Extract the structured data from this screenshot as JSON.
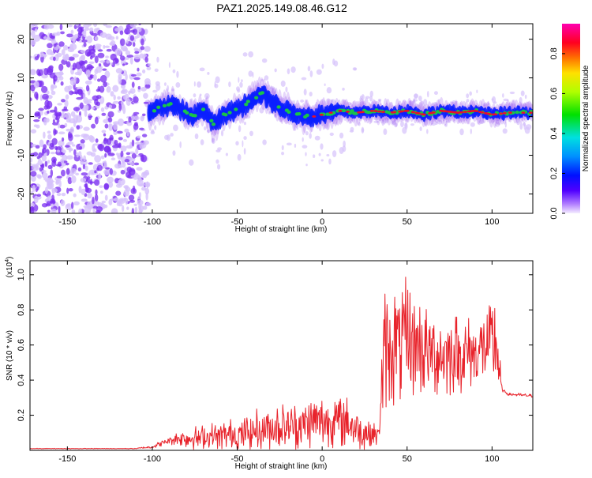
{
  "title": "PAZ1.2025.149.08.46.G12",
  "colors": {
    "spectro_bg": "#ffffff",
    "ridge_core": "#e8102a",
    "ridge_mid": "#19c34a",
    "ridge_outer": "#0a1eff",
    "halo": "#9b5cf0",
    "noise_dark": "#7a2df0",
    "noise_light": "#d6c2fb",
    "snr_line": "#e8232b"
  },
  "chart_data": [
    {
      "type": "heatmap",
      "xlabel": "Height of straight line (km)",
      "ylabel": "Frequency (Hz)",
      "xlim": [
        -172,
        124
      ],
      "ylim": [
        -25,
        24
      ],
      "xticks": [
        -150,
        -100,
        -50,
        0,
        50,
        100
      ],
      "yticks": [
        -20,
        -10,
        0,
        10,
        20
      ],
      "colorbar": {
        "label": "Normalized spectral amplitude",
        "range": [
          0,
          0.95
        ],
        "ticks": [
          "0.0",
          "0.2",
          "0.4",
          "0.6",
          "0.8"
        ],
        "tick_values": [
          0,
          0.2,
          0.4,
          0.6,
          0.8
        ]
      },
      "noise_region": {
        "x": [
          -172,
          -102
        ],
        "freq_range": [
          -25,
          24
        ]
      },
      "ridge": {
        "x": [
          -102,
          -95,
          -88,
          -82,
          -76,
          -70,
          -64,
          -58,
          -52,
          -46,
          -40,
          -35,
          -30,
          -25,
          -20,
          -15,
          -10,
          -5,
          0,
          10,
          20,
          30,
          40,
          50,
          60,
          70,
          80,
          90,
          100,
          110,
          124
        ],
        "freq": [
          1,
          2.5,
          3,
          1.5,
          0,
          2,
          -2,
          0.5,
          1.5,
          3,
          5,
          6,
          4,
          2.5,
          1.5,
          0.5,
          0,
          0,
          0.5,
          1.5,
          1,
          1.5,
          1,
          1.5,
          0.5,
          1.5,
          1,
          1.5,
          0.5,
          1,
          1
        ],
        "amp": [
          0.3,
          0.35,
          0.35,
          0.35,
          0.35,
          0.35,
          0.35,
          0.4,
          0.4,
          0.45,
          0.5,
          0.55,
          0.5,
          0.5,
          0.5,
          0.55,
          0.55,
          0.6,
          0.65,
          0.7,
          0.7,
          0.75,
          0.8,
          0.85,
          0.9,
          0.9,
          0.9,
          0.85,
          0.8,
          0.75,
          0.75
        ]
      }
    },
    {
      "type": "line",
      "xlabel": "Height of straight line (km)",
      "ylabel": "SNR (10 * v/v)",
      "yscale_label": "(x10",
      "yscale_exp": "4",
      "yscale_suffix": ")",
      "xlim": [
        -172,
        124
      ],
      "ylim": [
        0,
        1.08
      ],
      "xticks": [
        -150,
        -100,
        -50,
        0,
        50,
        100
      ],
      "yticks": [
        0.2,
        0.4,
        0.6,
        0.8,
        1
      ],
      "ytick_labels": [
        "0.2",
        "0.4",
        "0.6",
        "0.8",
        "1.0"
      ],
      "series": [
        {
          "x": [
            -172,
            -110,
            -100,
            -92,
            -85,
            -75,
            -65,
            -55,
            -45,
            -35,
            -25,
            -15,
            -5,
            5,
            15,
            25,
            33,
            35,
            37,
            45,
            50,
            55,
            65,
            75,
            85,
            95,
            100,
            103,
            104,
            106,
            110,
            124
          ],
          "y": [
            0.01,
            0.01,
            0.02,
            0.05,
            0.07,
            0.07,
            0.08,
            0.09,
            0.1,
            0.13,
            0.14,
            0.14,
            0.16,
            0.17,
            0.16,
            0.1,
            0.08,
            0.35,
            0.58,
            0.6,
            0.62,
            0.6,
            0.55,
            0.55,
            0.55,
            0.58,
            0.6,
            0.6,
            0.45,
            0.34,
            0.32,
            0.31
          ],
          "amp": [
            0.002,
            0.002,
            0.01,
            0.02,
            0.04,
            0.07,
            0.08,
            0.09,
            0.11,
            0.13,
            0.14,
            0.14,
            0.15,
            0.16,
            0.15,
            0.12,
            0.05,
            0.25,
            0.35,
            0.35,
            0.38,
            0.3,
            0.25,
            0.25,
            0.22,
            0.2,
            0.25,
            0.35,
            0.2,
            0.01,
            0.01,
            0.01
          ]
        }
      ]
    }
  ]
}
